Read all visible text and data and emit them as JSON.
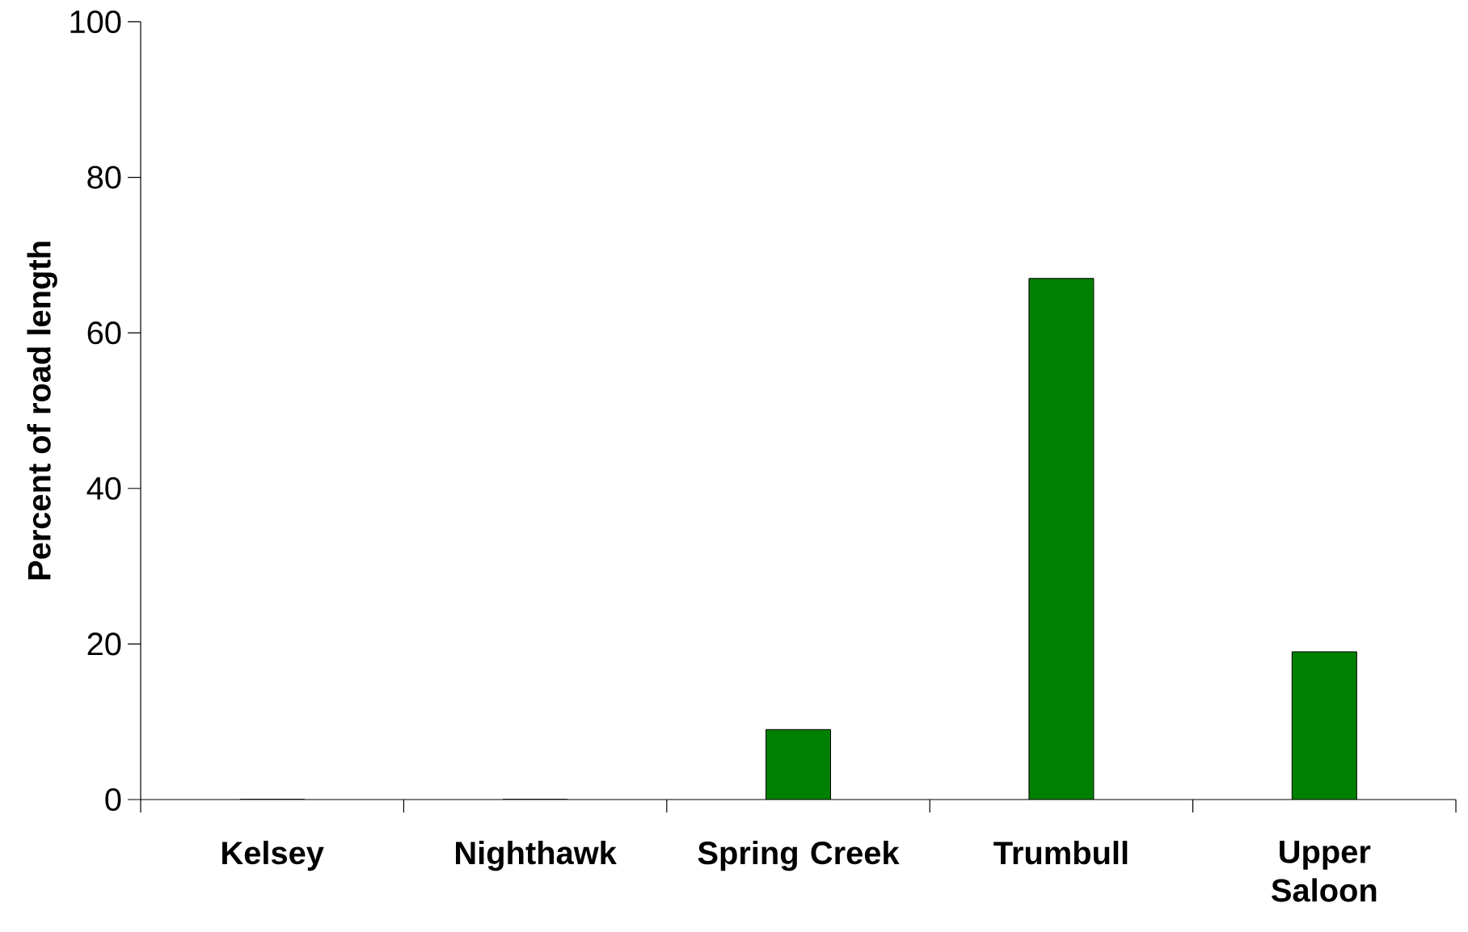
{
  "chart_data": {
    "type": "bar",
    "ylabel": "Percent of road length",
    "categories": [
      "Kelsey",
      "Nighthawk",
      "Spring Creek",
      "Trumbull",
      "Upper Saloon"
    ],
    "values": [
      0,
      0,
      9,
      67,
      19
    ],
    "color": "#008000",
    "ylim": [
      0,
      100
    ],
    "yticks": [
      0,
      20,
      40,
      60,
      80,
      100
    ],
    "grid": false
  }
}
